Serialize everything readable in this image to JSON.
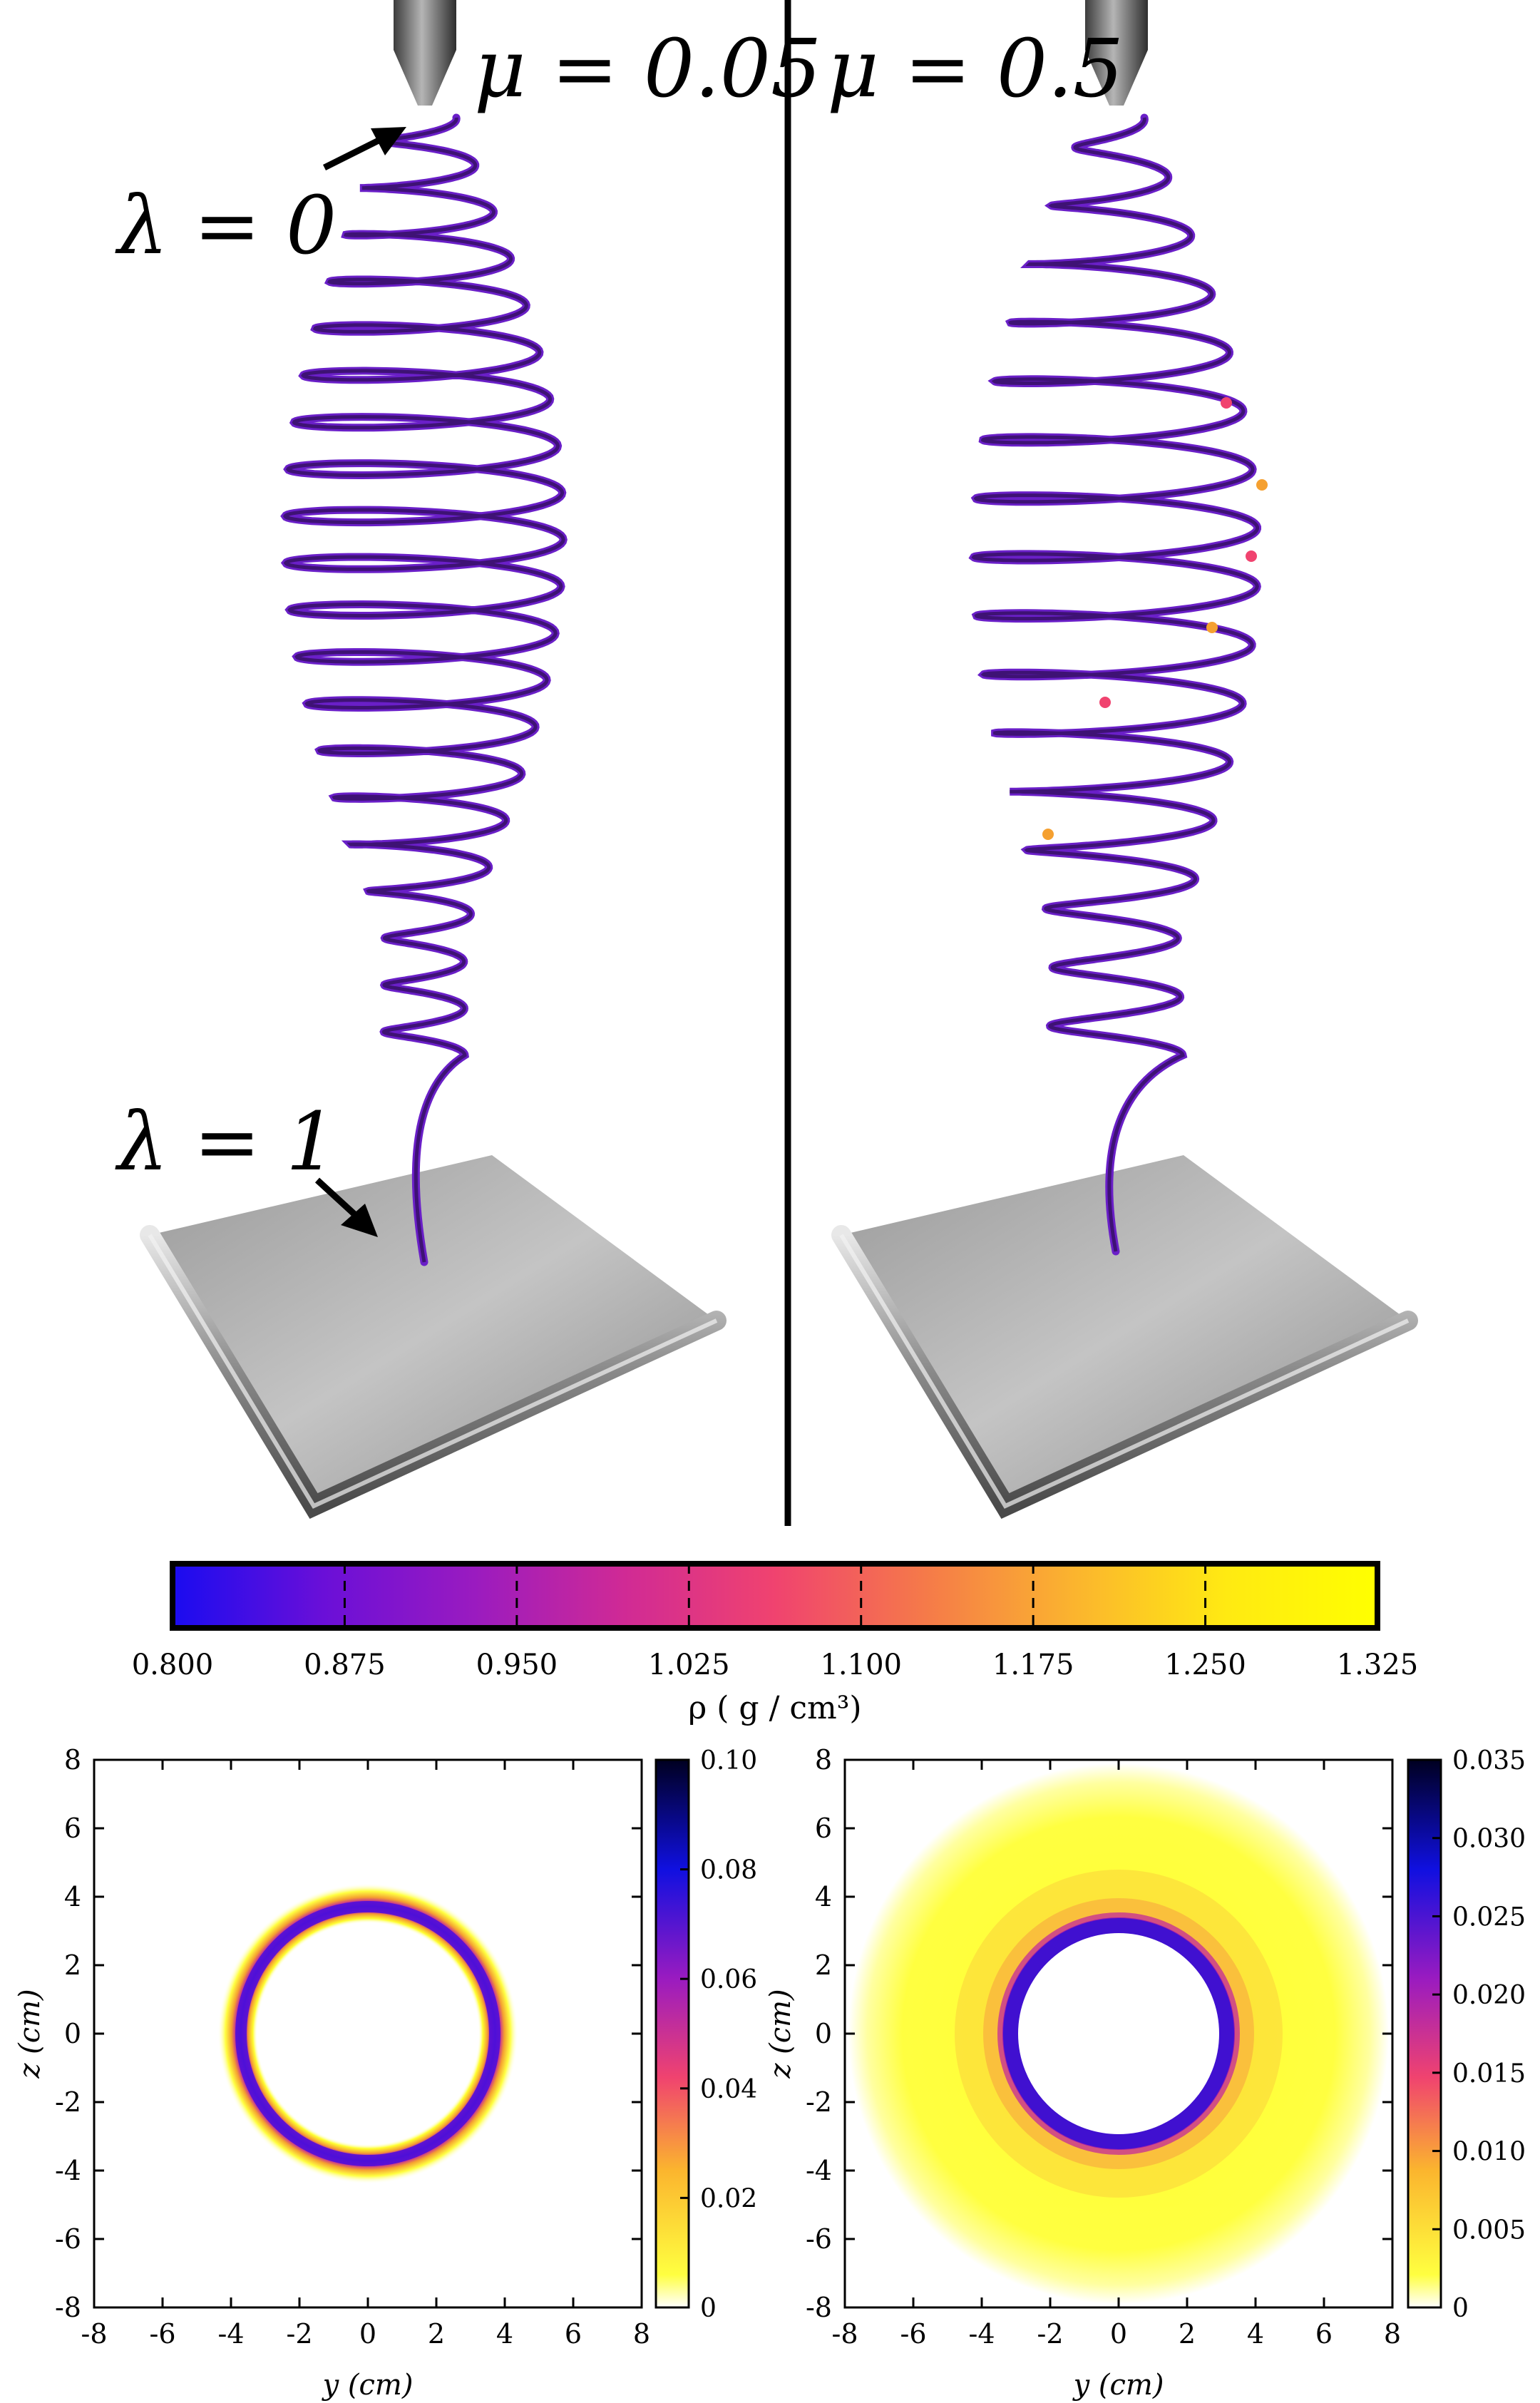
{
  "top_panels": {
    "left": {
      "mu_label": "μ = 0.05",
      "annotation_start": "λ = 0",
      "annotation_end": "λ = 1"
    },
    "right": {
      "mu_label": "μ = 0.5"
    }
  },
  "colorbar_main": {
    "ticks": [
      "0.800",
      "0.875",
      "0.950",
      "1.025",
      "1.100",
      "1.175",
      "1.250",
      "1.325"
    ],
    "label": "ρ ( g / cm³)",
    "colors": [
      "#1a0cf0",
      "#6a0fd8",
      "#9a1bc0",
      "#d02a95",
      "#f0436f",
      "#f57a49",
      "#fbb52e",
      "#ffea12",
      "#ffff00"
    ]
  },
  "chart_data": [
    {
      "type": "heatmap",
      "title": "",
      "xlabel": "y (cm)",
      "ylabel": "z (cm)",
      "xlim": [
        -8,
        8
      ],
      "ylim": [
        -8,
        8
      ],
      "x_ticks": [
        "-8",
        "-6",
        "-4",
        "-2",
        "0",
        "2",
        "4",
        "6",
        "8"
      ],
      "y_ticks": [
        "8",
        "6",
        "4",
        "2",
        "0",
        "-2",
        "-4",
        "-6",
        "-8"
      ],
      "ring": {
        "center": [
          0,
          0
        ],
        "radius_cm": 4.0,
        "width_cm": 0.8,
        "peak_value": 0.1
      },
      "colorbar": {
        "range": [
          0,
          0.1
        ],
        "ticks": [
          "0.10",
          "0.08",
          "0.06",
          "0.04",
          "0.02",
          "0"
        ]
      }
    },
    {
      "type": "heatmap",
      "title": "",
      "xlabel": "y (cm)",
      "ylabel": "z (cm)",
      "xlim": [
        -8,
        8
      ],
      "ylim": [
        -8,
        8
      ],
      "x_ticks": [
        "-8",
        "-6",
        "-4",
        "-2",
        "0",
        "2",
        "4",
        "6",
        "8"
      ],
      "y_ticks": [
        "8",
        "6",
        "4",
        "2",
        "0",
        "-2",
        "-4",
        "-6",
        "-8"
      ],
      "ring": {
        "center": [
          0,
          0
        ],
        "radius_cm": 3.0,
        "width_cm": 0.6,
        "peak_value": 0.035
      },
      "background": {
        "extent_cm": 7.8,
        "value": 0.003
      },
      "colorbar": {
        "range": [
          0,
          0.035
        ],
        "ticks": [
          "0.035",
          "0.030",
          "0.025",
          "0.020",
          "0.015",
          "0.010",
          "0.005",
          "0"
        ]
      }
    }
  ]
}
